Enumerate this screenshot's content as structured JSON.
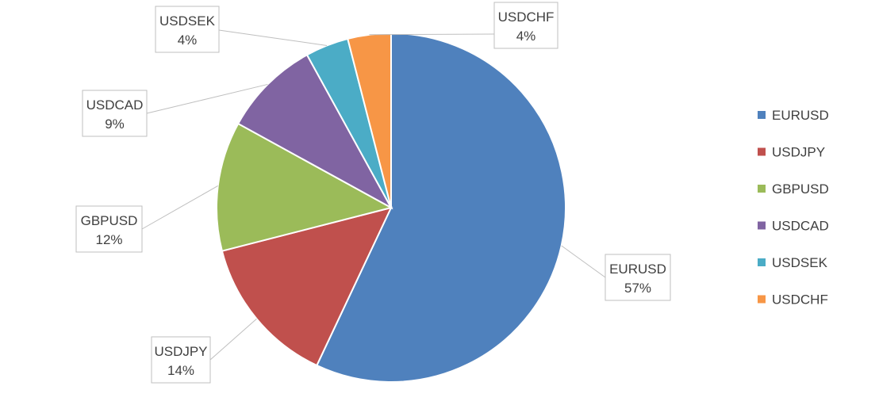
{
  "chart_data": {
    "type": "pie",
    "title": "",
    "categories": [
      "EURUSD",
      "USDJPY",
      "GBPUSD",
      "USDCAD",
      "USDSEK",
      "USDCHF"
    ],
    "values": [
      57,
      14,
      12,
      9,
      4,
      4
    ],
    "labels": [
      "57%",
      "14%",
      "12%",
      "9%",
      "4%",
      "4%"
    ],
    "colors": [
      "#4f81bd",
      "#c0504d",
      "#9bbb59",
      "#8064a2",
      "#4bacc6",
      "#f79646"
    ],
    "legend": {
      "position": "right",
      "entries": [
        "EURUSD",
        "USDJPY",
        "GBPUSD",
        "USDCAD",
        "USDSEK",
        "USDCHF"
      ]
    },
    "data_labels": "callouts"
  }
}
